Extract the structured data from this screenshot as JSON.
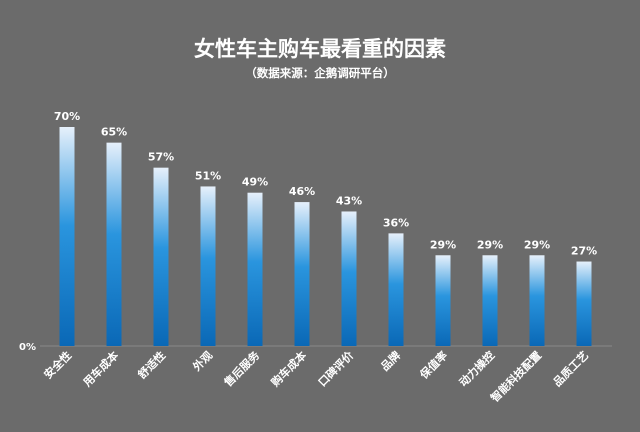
{
  "chart_data": {
    "type": "bar",
    "title": "女性车主购车最看重的因素",
    "subtitle": "（数据来源：企鹅调研平台）",
    "categories": [
      "安全性",
      "用车成本",
      "舒适性",
      "外观",
      "售后服务",
      "购车成本",
      "口碑评价",
      "品牌",
      "保值率",
      "动力操控",
      "智能科技配置",
      "品质工艺"
    ],
    "values": [
      70,
      65,
      57,
      51,
      49,
      46,
      43,
      36,
      29,
      29,
      29,
      27
    ],
    "value_labels": [
      "70%",
      "65%",
      "57%",
      "51%",
      "49%",
      "46%",
      "43%",
      "36%",
      "29%",
      "29%",
      "29%",
      "27%"
    ],
    "ylim": [
      0,
      70
    ],
    "y_tick_label": "0%",
    "grid": false,
    "legend": "none",
    "colors": {
      "background": "#6b6b6b",
      "bar_top": "#e6f0fb",
      "bar_mid": "#2a95de",
      "bar_bottom": "#0a68b6",
      "text": "#ffffff"
    }
  }
}
